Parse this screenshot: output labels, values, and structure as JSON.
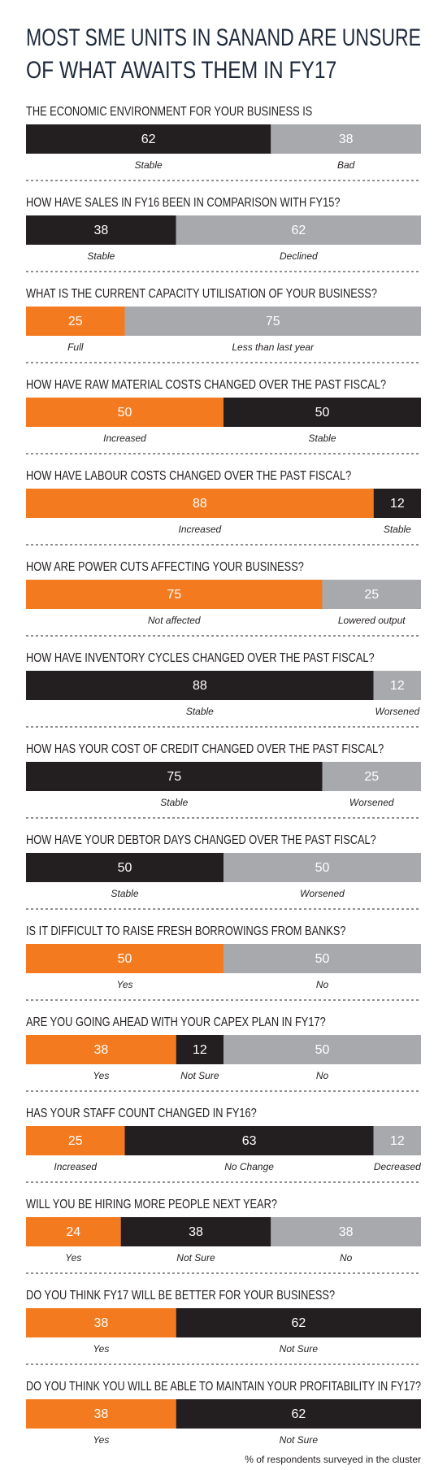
{
  "title": [
    "MOST SME UNITS IN SANAND ARE UNSURE",
    "OF WHAT AWAITS THEM IN FY17"
  ],
  "note": "% of respondents surveyed in the cluster",
  "chart_data": [
    {
      "type": "stacked-bar",
      "title": "THE ECONOMIC ENVIRONMENT FOR YOUR BUSINESS IS",
      "series": [
        {
          "name": "Stable",
          "color": "#231f20",
          "values": [
            62
          ]
        },
        {
          "name": "Bad",
          "color": "#a7a9ac",
          "values": [
            38
          ]
        }
      ]
    },
    {
      "type": "stacked-bar",
      "title": "HOW HAVE SALES IN FY16 BEEN IN COMPARISON WITH FY15?",
      "series": [
        {
          "name": "Stable",
          "color": "#231f20",
          "values": [
            38
          ]
        },
        {
          "name": "Declined",
          "color": "#a7a9ac",
          "values": [
            62
          ]
        }
      ]
    },
    {
      "type": "stacked-bar",
      "title": "WHAT IS THE CURRENT CAPACITY UTILISATION OF YOUR BUSINESS?",
      "series": [
        {
          "name": "Full",
          "color": "#f47a20",
          "values": [
            25
          ]
        },
        {
          "name": "Less than last year",
          "color": "#a7a9ac",
          "values": [
            75
          ]
        }
      ]
    },
    {
      "type": "stacked-bar",
      "title": "HOW HAVE RAW MATERIAL COSTS CHANGED OVER THE PAST FISCAL?",
      "series": [
        {
          "name": "Increased",
          "color": "#f47a20",
          "values": [
            50
          ]
        },
        {
          "name": "Stable",
          "color": "#231f20",
          "values": [
            50
          ]
        }
      ]
    },
    {
      "type": "stacked-bar",
      "title": "HOW HAVE LABOUR COSTS CHANGED OVER THE PAST FISCAL?",
      "series": [
        {
          "name": "Increased",
          "color": "#f47a20",
          "values": [
            88
          ]
        },
        {
          "name": "Stable",
          "color": "#231f20",
          "values": [
            12
          ]
        }
      ]
    },
    {
      "type": "stacked-bar",
      "title": "HOW ARE POWER CUTS AFFECTING YOUR BUSINESS?",
      "series": [
        {
          "name": "Not affected",
          "color": "#f47a20",
          "values": [
            75
          ]
        },
        {
          "name": "Lowered output",
          "color": "#a7a9ac",
          "values": [
            25
          ]
        }
      ]
    },
    {
      "type": "stacked-bar",
      "title": "HOW HAVE INVENTORY CYCLES CHANGED OVER THE PAST FISCAL?",
      "series": [
        {
          "name": "Stable",
          "color": "#231f20",
          "values": [
            88
          ]
        },
        {
          "name": "Worsened",
          "color": "#a7a9ac",
          "values": [
            12
          ]
        }
      ]
    },
    {
      "type": "stacked-bar",
      "title": "HOW HAS YOUR COST OF CREDIT CHANGED OVER THE PAST FISCAL?",
      "series": [
        {
          "name": "Stable",
          "color": "#231f20",
          "values": [
            75
          ]
        },
        {
          "name": "Worsened",
          "color": "#a7a9ac",
          "values": [
            25
          ]
        }
      ]
    },
    {
      "type": "stacked-bar",
      "title": "HOW HAVE YOUR DEBTOR DAYS CHANGED OVER THE PAST FISCAL?",
      "series": [
        {
          "name": "Stable",
          "color": "#231f20",
          "values": [
            50
          ]
        },
        {
          "name": "Worsened",
          "color": "#a7a9ac",
          "values": [
            50
          ]
        }
      ]
    },
    {
      "type": "stacked-bar",
      "title": "IS IT DIFFICULT TO RAISE FRESH BORROWINGS FROM BANKS?",
      "series": [
        {
          "name": "Yes",
          "color": "#f47a20",
          "values": [
            50
          ]
        },
        {
          "name": "No",
          "color": "#a7a9ac",
          "values": [
            50
          ]
        }
      ]
    },
    {
      "type": "stacked-bar",
      "title": "ARE YOU GOING AHEAD WITH YOUR CAPEX PLAN IN FY17?",
      "series": [
        {
          "name": "Yes",
          "color": "#f47a20",
          "values": [
            38
          ]
        },
        {
          "name": "Not Sure",
          "color": "#231f20",
          "values": [
            12
          ]
        },
        {
          "name": "No",
          "color": "#a7a9ac",
          "values": [
            50
          ]
        }
      ]
    },
    {
      "type": "stacked-bar",
      "title": "HAS YOUR STAFF COUNT CHANGED IN FY16?",
      "series": [
        {
          "name": "Increased",
          "color": "#f47a20",
          "values": [
            25
          ]
        },
        {
          "name": "No Change",
          "color": "#231f20",
          "values": [
            63
          ]
        },
        {
          "name": "Decreased",
          "color": "#a7a9ac",
          "values": [
            12
          ]
        }
      ]
    },
    {
      "type": "stacked-bar",
      "title": "WILL YOU BE HIRING MORE PEOPLE NEXT YEAR?",
      "series": [
        {
          "name": "Yes",
          "color": "#f47a20",
          "values": [
            24
          ]
        },
        {
          "name": "Not Sure",
          "color": "#231f20",
          "values": [
            38
          ]
        },
        {
          "name": "No",
          "color": "#a7a9ac",
          "values": [
            38
          ]
        }
      ]
    },
    {
      "type": "stacked-bar",
      "title": "DO YOU THINK FY17 WILL BE BETTER FOR YOUR BUSINESS?",
      "series": [
        {
          "name": "Yes",
          "color": "#f47a20",
          "values": [
            38
          ]
        },
        {
          "name": "Not Sure",
          "color": "#231f20",
          "values": [
            62
          ]
        }
      ]
    },
    {
      "type": "stacked-bar",
      "title": "DO YOU THINK YOU WILL BE ABLE TO MAINTAIN YOUR PROFITABILITY IN FY17?",
      "series": [
        {
          "name": "Yes",
          "color": "#f47a20",
          "values": [
            38
          ]
        },
        {
          "name": "Not Sure",
          "color": "#231f20",
          "values": [
            62
          ]
        }
      ]
    }
  ]
}
